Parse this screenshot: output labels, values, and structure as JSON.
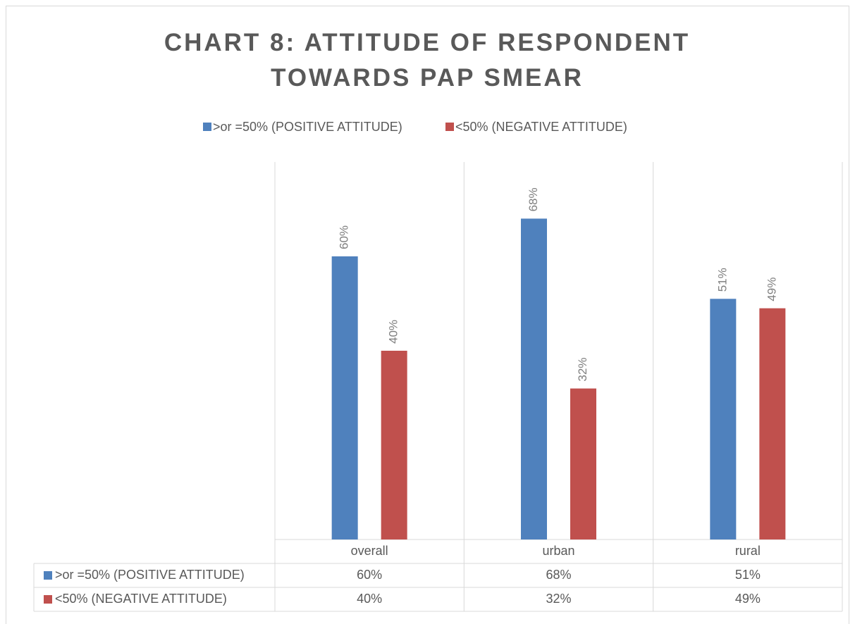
{
  "chart_data": {
    "type": "bar",
    "title": "CHART 8: ATTITUDE OF RESPONDENT TOWARDS PAP SMEAR",
    "categories": [
      "overall",
      "urban",
      "rural"
    ],
    "series": [
      {
        "name": ">or =50% (POSITIVE ATTITUDE)",
        "color": "#4f81bd",
        "values": [
          60,
          68,
          51
        ],
        "value_labels": [
          "60%",
          "68%",
          "51%"
        ]
      },
      {
        "name": "<50% (NEGATIVE ATTITUDE)",
        "color": "#c0504d",
        "values": [
          40,
          32,
          49
        ],
        "value_labels": [
          "40%",
          "32%",
          "49%"
        ]
      }
    ],
    "ylim": [
      0,
      80
    ],
    "legend": "top",
    "data_table": true
  }
}
